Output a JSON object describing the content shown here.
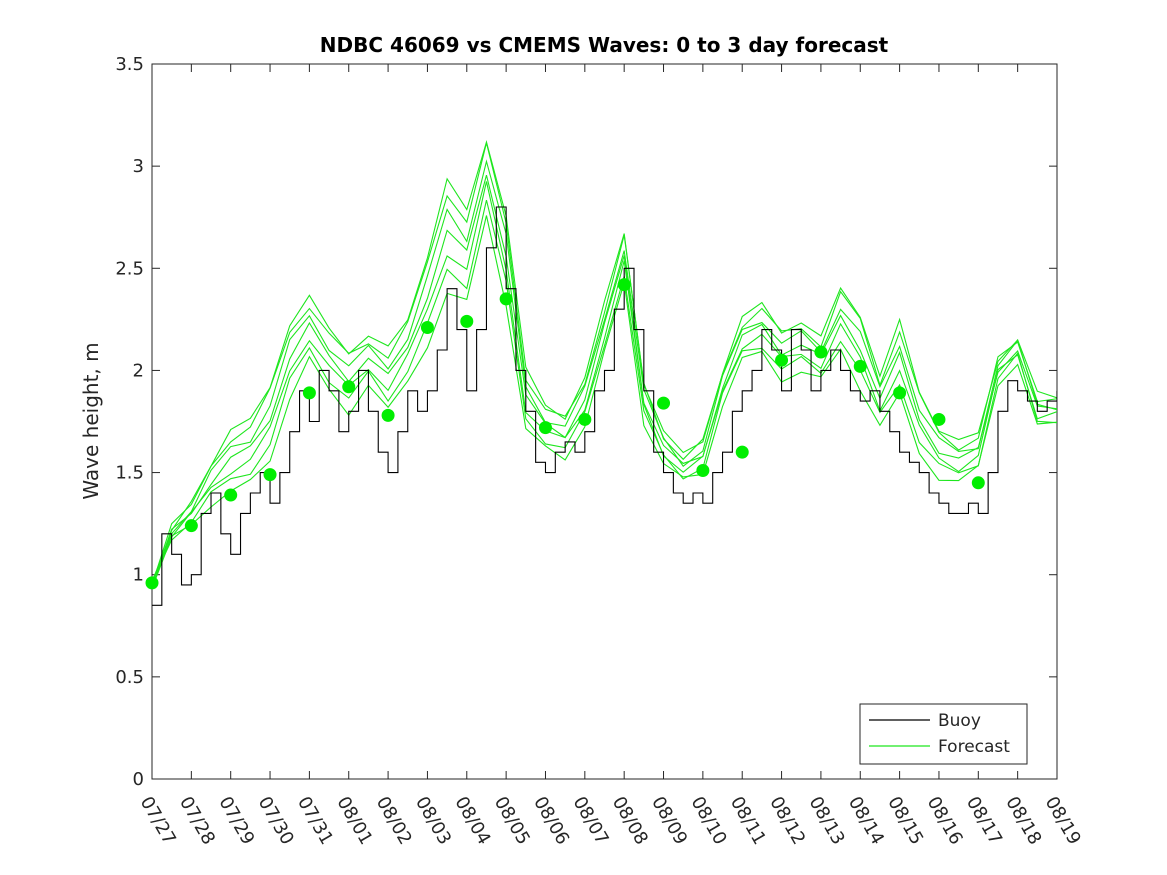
{
  "chart_data": {
    "type": "line",
    "title": "NDBC 46069 vs CMEMS Waves: 0 to 3 day forecast",
    "xlabel": "",
    "ylabel": "Wave height, m",
    "ylim": [
      0,
      3.5
    ],
    "yticks": [
      "0",
      "0.5",
      "1",
      "1.5",
      "2",
      "2.5",
      "3",
      "3.5"
    ],
    "ytick_values": [
      0,
      0.5,
      1,
      1.5,
      2,
      2.5,
      3,
      3.5
    ],
    "xlim_days": [
      0,
      23
    ],
    "xtick_labels": [
      "07/27",
      "07/28",
      "07/29",
      "07/30",
      "07/31",
      "08/01",
      "08/02",
      "08/03",
      "08/04",
      "08/05",
      "08/06",
      "08/07",
      "08/08",
      "08/09",
      "08/10",
      "08/11",
      "08/12",
      "08/13",
      "08/14",
      "08/15",
      "08/16",
      "08/17",
      "08/18",
      "08/19"
    ],
    "legend": {
      "position": "bottom-right",
      "entries": [
        {
          "label": "Buoy",
          "color": "#000000"
        },
        {
          "label": "Forecast",
          "color": "#00e600"
        }
      ]
    },
    "colors": {
      "buoy": "#000000",
      "forecast": "#1ee61e",
      "marker": "#00ee00"
    },
    "series": [
      {
        "name": "Buoy",
        "x_days": [
          0,
          0.25,
          0.5,
          0.75,
          1,
          1.25,
          1.5,
          1.75,
          2,
          2.25,
          2.5,
          2.75,
          3,
          3.25,
          3.5,
          3.75,
          4,
          4.25,
          4.5,
          4.75,
          5,
          5.25,
          5.5,
          5.75,
          6,
          6.25,
          6.5,
          6.75,
          7,
          7.25,
          7.5,
          7.75,
          8,
          8.25,
          8.5,
          8.75,
          9,
          9.25,
          9.5,
          9.75,
          10,
          10.25,
          10.5,
          10.75,
          11,
          11.25,
          11.5,
          11.75,
          12,
          12.25,
          12.5,
          12.75,
          13,
          13.25,
          13.5,
          13.75,
          14,
          14.25,
          14.5,
          14.75,
          15,
          15.25,
          15.5,
          15.75,
          16,
          16.25,
          16.5,
          16.75,
          17,
          17.25,
          17.5,
          17.75,
          18,
          18.25,
          18.5,
          18.75,
          19,
          19.25,
          19.5,
          19.75,
          20,
          20.25,
          20.5,
          20.75,
          21,
          21.25,
          21.5,
          21.75,
          22,
          22.25,
          22.5,
          22.75,
          23
        ],
        "values": [
          0.85,
          1.2,
          1.1,
          0.95,
          1.0,
          1.3,
          1.4,
          1.2,
          1.1,
          1.3,
          1.4,
          1.5,
          1.35,
          1.5,
          1.7,
          1.9,
          1.75,
          2.0,
          1.9,
          1.7,
          1.8,
          2.0,
          1.8,
          1.6,
          1.5,
          1.7,
          1.9,
          1.8,
          1.9,
          2.1,
          2.4,
          2.2,
          1.9,
          2.2,
          2.6,
          2.8,
          2.4,
          2.0,
          1.8,
          1.55,
          1.5,
          1.6,
          1.65,
          1.6,
          1.7,
          1.9,
          2.0,
          2.3,
          2.5,
          2.2,
          1.9,
          1.6,
          1.5,
          1.4,
          1.35,
          1.4,
          1.35,
          1.5,
          1.6,
          1.8,
          1.9,
          2.0,
          2.2,
          2.1,
          1.9,
          2.2,
          2.1,
          1.9,
          2.0,
          2.1,
          2.0,
          1.9,
          1.85,
          1.9,
          1.8,
          1.7,
          1.6,
          1.55,
          1.5,
          1.4,
          1.35,
          1.3,
          1.3,
          1.35,
          1.3,
          1.5,
          1.8,
          1.95,
          1.9,
          1.85,
          1.8,
          1.85,
          1.9
        ]
      },
      {
        "name": "Forecast",
        "x_days": [
          0,
          0.5,
          1,
          1.5,
          2,
          2.5,
          3,
          3.5,
          4,
          4.5,
          5,
          5.5,
          6,
          6.5,
          7,
          7.5,
          8,
          8.5,
          9,
          9.5,
          10,
          10.5,
          11,
          11.5,
          12,
          12.5,
          13,
          13.5,
          14,
          14.5,
          15,
          15.5,
          16,
          16.5,
          17,
          17.5,
          18,
          18.5,
          19,
          19.5,
          20,
          20.5,
          21,
          21.5,
          22,
          22.5,
          23
        ],
        "values": [
          0.95,
          1.2,
          1.3,
          1.45,
          1.55,
          1.6,
          1.75,
          2.05,
          2.2,
          2.05,
          1.95,
          2.05,
          1.95,
          2.1,
          2.35,
          2.65,
          2.55,
          2.95,
          2.55,
          1.85,
          1.72,
          1.68,
          1.85,
          2.2,
          2.55,
          1.85,
          1.62,
          1.52,
          1.58,
          1.92,
          2.15,
          2.2,
          2.08,
          2.12,
          2.05,
          2.25,
          2.1,
          1.85,
          2.05,
          1.75,
          1.6,
          1.55,
          1.6,
          2.0,
          2.1,
          1.8,
          1.8
        ],
        "spread": [
          0.0,
          0.03,
          0.05,
          0.1,
          0.15,
          0.15,
          0.18,
          0.18,
          0.15,
          0.15,
          0.15,
          0.12,
          0.15,
          0.15,
          0.22,
          0.28,
          0.22,
          0.18,
          0.22,
          0.15,
          0.1,
          0.1,
          0.12,
          0.12,
          0.12,
          0.1,
          0.08,
          0.06,
          0.08,
          0.08,
          0.1,
          0.12,
          0.12,
          0.12,
          0.1,
          0.15,
          0.18,
          0.12,
          0.18,
          0.15,
          0.12,
          0.1,
          0.08,
          0.06,
          0.06,
          0.08,
          0.06
        ]
      },
      {
        "name": "Forecast initial (daily markers)",
        "x_days": [
          0,
          1,
          2,
          3,
          4,
          5,
          6,
          7,
          8,
          9,
          10,
          11,
          12,
          13,
          14,
          15,
          16,
          17,
          18,
          19,
          20,
          21
        ],
        "values": [
          0.96,
          1.24,
          1.39,
          1.49,
          1.89,
          1.92,
          1.78,
          2.21,
          2.24,
          2.35,
          1.72,
          1.76,
          2.42,
          1.84,
          1.51,
          1.6,
          2.05,
          2.09,
          2.02,
          1.89,
          1.76,
          1.45
        ]
      }
    ]
  }
}
